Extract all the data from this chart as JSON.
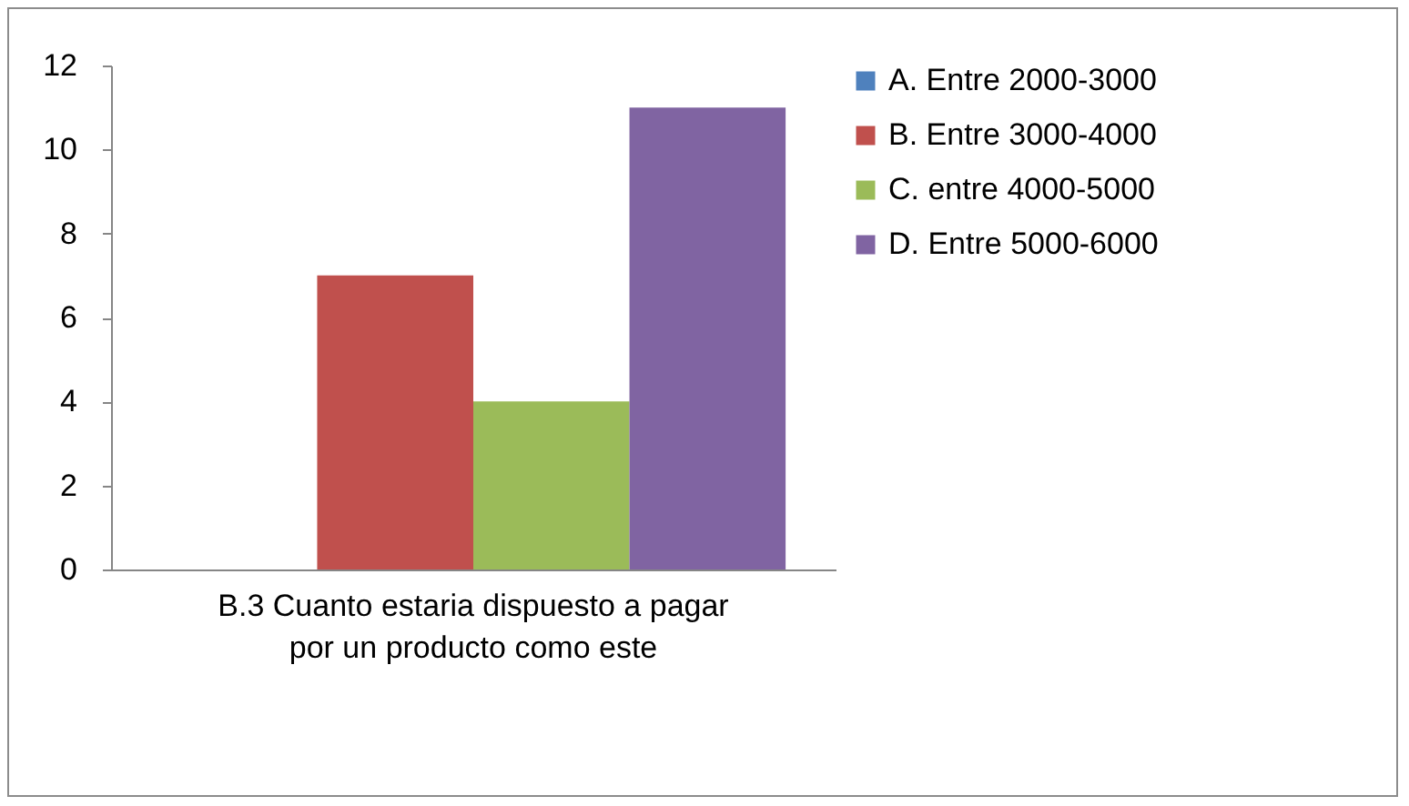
{
  "chart_data": {
    "type": "bar",
    "categories": [
      "B.3  Cuanto estaria dispuesto a pagar por un producto como este"
    ],
    "series": [
      {
        "name": "A. Entre 2000-3000",
        "color": "#4f81bd",
        "values": [
          0
        ]
      },
      {
        "name": "B. Entre 3000-4000",
        "color": "#c0504d",
        "values": [
          7
        ]
      },
      {
        "name": "C. entre 4000-5000",
        "color": "#9bbb59",
        "values": [
          4
        ]
      },
      {
        "name": "D. Entre 5000-6000",
        "color": "#8064a2",
        "values": [
          11
        ]
      }
    ],
    "ylim": [
      0,
      12
    ],
    "yticks": [
      0,
      2,
      4,
      6,
      8,
      10,
      12
    ],
    "legend": "right"
  }
}
